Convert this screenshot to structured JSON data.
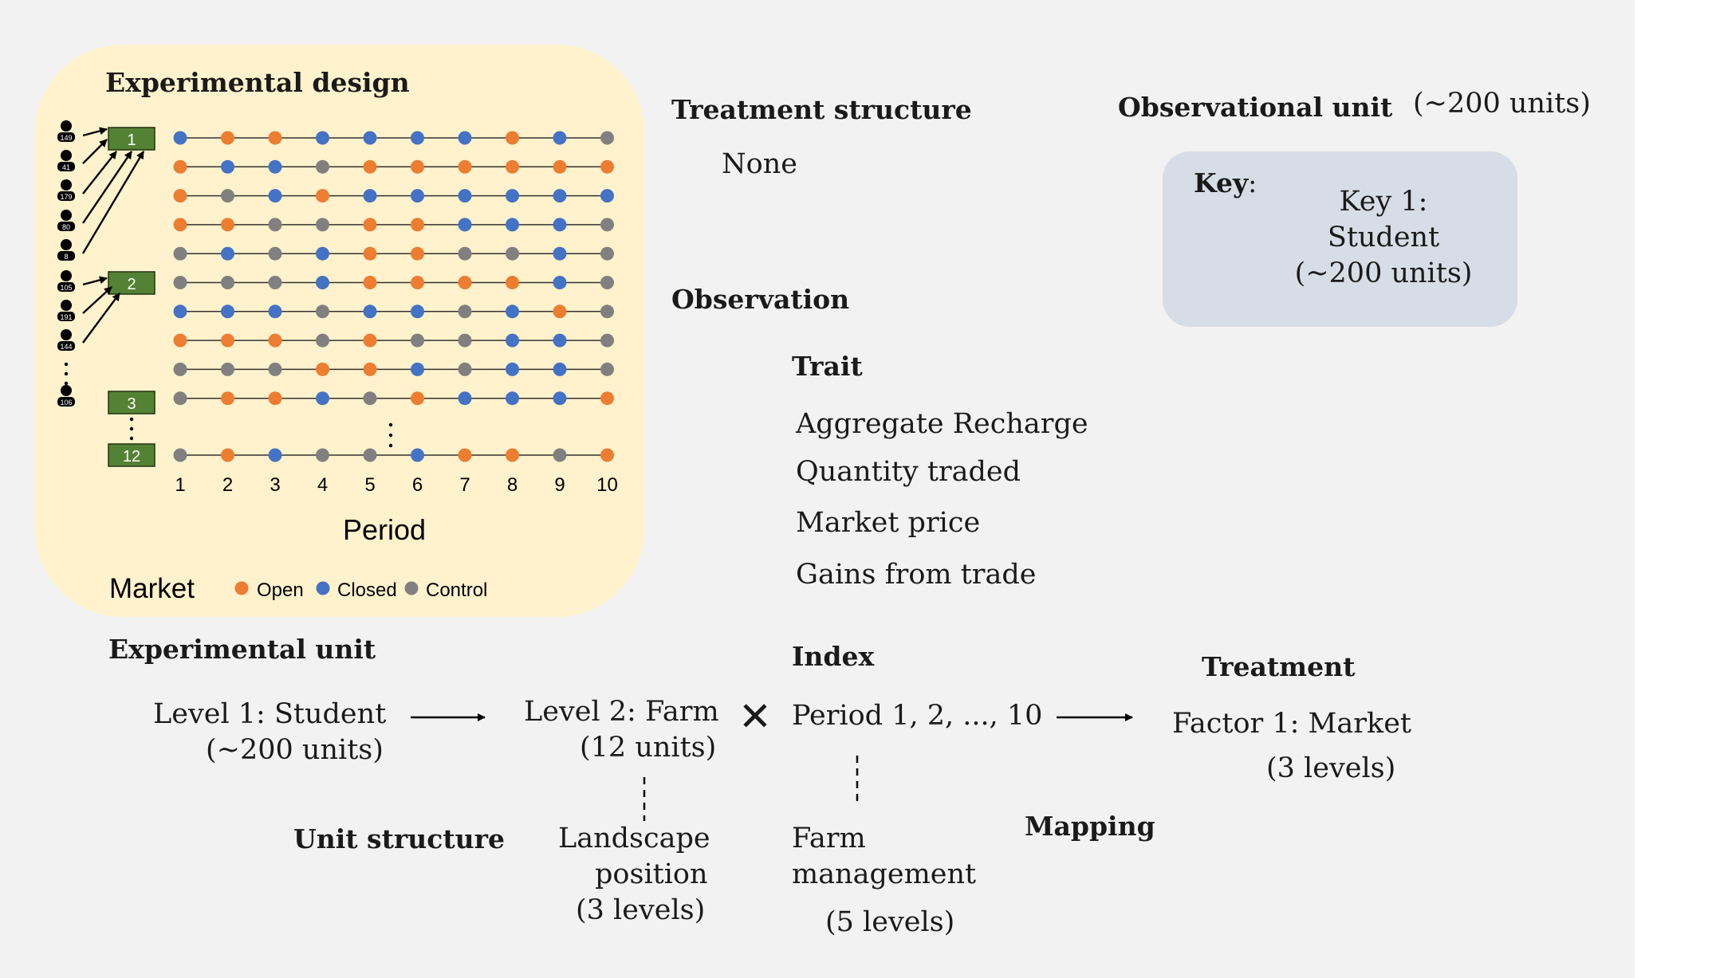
{
  "design_panel": {
    "title": "Experimental design",
    "students": [
      "149",
      "41",
      "179",
      "80",
      "8",
      "105",
      "191",
      "144",
      "106"
    ],
    "groups": [
      "1",
      "2",
      "3",
      "12"
    ],
    "rows": [
      [
        "C",
        "O",
        "O",
        "C",
        "C",
        "C",
        "C",
        "O",
        "C",
        "G"
      ],
      [
        "O",
        "C",
        "C",
        "G",
        "O",
        "O",
        "O",
        "O",
        "O",
        "O"
      ],
      [
        "O",
        "G",
        "C",
        "O",
        "C",
        "C",
        "C",
        "C",
        "C",
        "C"
      ],
      [
        "O",
        "O",
        "G",
        "G",
        "O",
        "O",
        "C",
        "C",
        "C",
        "G"
      ],
      [
        "G",
        "C",
        "G",
        "C",
        "O",
        "O",
        "G",
        "G",
        "C",
        "G"
      ],
      [
        "G",
        "G",
        "G",
        "C",
        "O",
        "O",
        "O",
        "O",
        "C",
        "G"
      ],
      [
        "C",
        "C",
        "C",
        "G",
        "C",
        "C",
        "G",
        "C",
        "O",
        "G"
      ],
      [
        "O",
        "O",
        "O",
        "G",
        "O",
        "G",
        "G",
        "C",
        "C",
        "G"
      ],
      [
        "G",
        "G",
        "G",
        "O",
        "O",
        "C",
        "G",
        "C",
        "C",
        "G"
      ],
      [
        "G",
        "O",
        "O",
        "C",
        "G",
        "O",
        "C",
        "C",
        "C",
        "O"
      ]
    ],
    "last_row": [
      "G",
      "O",
      "C",
      "G",
      "G",
      "C",
      "O",
      "O",
      "G",
      "O"
    ],
    "periods": [
      "1",
      "2",
      "3",
      "4",
      "5",
      "6",
      "7",
      "8",
      "9",
      "10"
    ],
    "xlabel": "Period",
    "legend_title": "Market",
    "legend": [
      {
        "label": "Open",
        "color": "#ED7D31"
      },
      {
        "label": "Closed",
        "color": "#4472C4"
      },
      {
        "label": "Control",
        "color": "#808080"
      }
    ],
    "colors": {
      "O": "#ED7D31",
      "C": "#4472C4",
      "G": "#808080",
      "group_box": "#548235",
      "panel": "#FFF2CC"
    }
  },
  "treatment_structure": {
    "title": "Treatment structure",
    "value": "None"
  },
  "observational_unit": {
    "title": "Observational unit",
    "count": "(~200 units)"
  },
  "key": {
    "label": "Key",
    "colon": ":",
    "line1": "Key 1:",
    "line2": "Student",
    "line3": "(~200 units)"
  },
  "observation": {
    "title": "Observation",
    "trait_title": "Trait",
    "traits": [
      "Aggregate Recharge",
      "Quantity traded",
      "Market price",
      "Gains from trade"
    ]
  },
  "experimental_unit": {
    "title": "Experimental unit",
    "level1_a": "Level 1: Student",
    "level1_b": "(~200 units)",
    "level2_a": "Level 2: Farm",
    "level2_b": "(12 units)",
    "cross": "✕"
  },
  "index": {
    "title": "Index",
    "value": "Period 1, 2, ..., 10"
  },
  "treatment": {
    "title": "Treatment",
    "factor": "Factor 1: Market",
    "levels": "(3 levels)"
  },
  "unit_structure": {
    "title": "Unit structure",
    "line1": "Landscape",
    "line2": "position",
    "line3": "(3 levels)"
  },
  "mapping": {
    "title": "Mapping",
    "line1": "Farm",
    "line2": "management",
    "line3": "(5 levels)"
  }
}
